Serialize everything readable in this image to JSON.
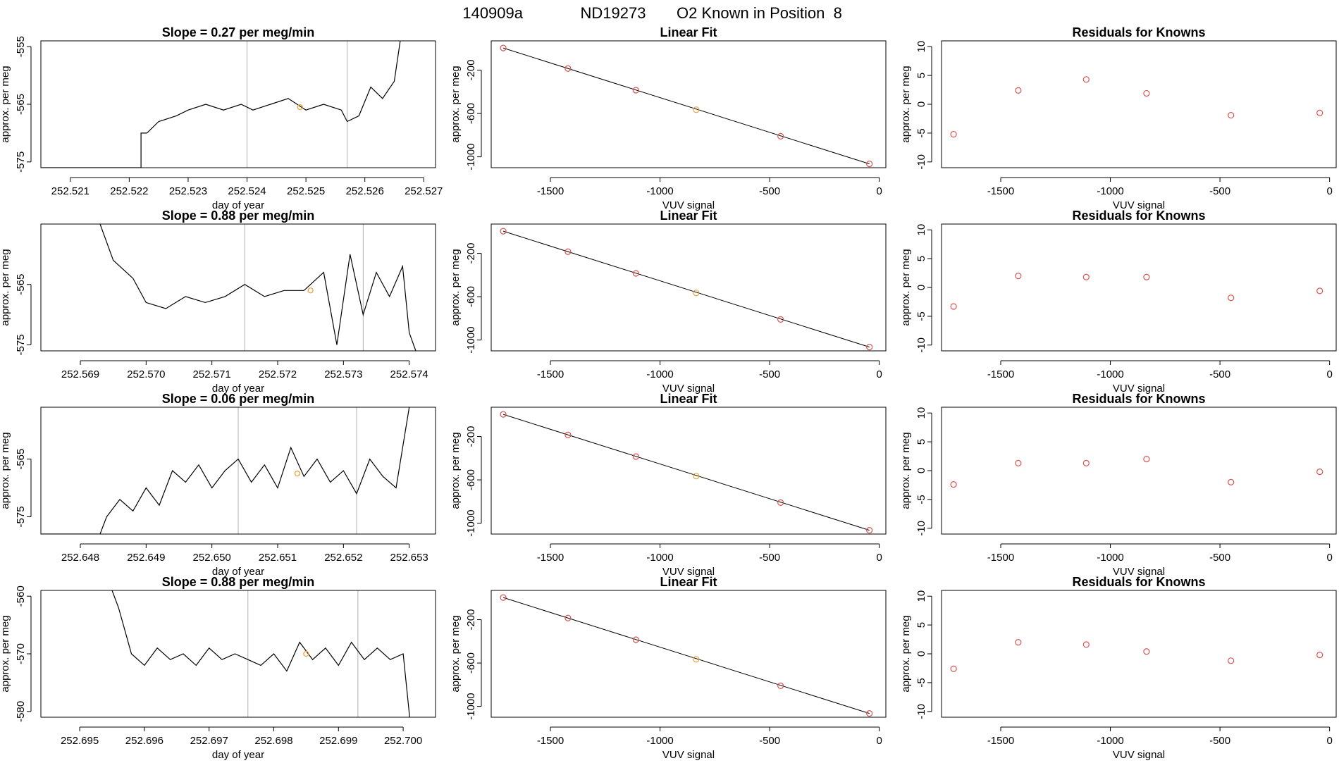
{
  "page_title": {
    "run_id": "140909a",
    "tank_id": "ND19273",
    "description": "O2 Known in Position  8"
  },
  "colors": {
    "line": "#000000",
    "frame": "#000000",
    "point": "#d9534f",
    "highlight_point": "#e8a33d",
    "vline": "#b0b0b0"
  },
  "chart_data": [
    {
      "type": "line",
      "panel": "trace",
      "row": 1,
      "title": "Slope =  0.27  per meg/min",
      "xlabel": "day of year",
      "ylabel": "approx. per meg",
      "xlim": [
        252.5205,
        252.5272
      ],
      "ylim": [
        -576,
        -554
      ],
      "x_ticks": [
        252.521,
        252.522,
        252.523,
        252.524,
        252.525,
        252.526,
        252.527
      ],
      "x_tick_labels": [
        "252.521",
        "252.522",
        "252.523",
        "252.524",
        "252.525",
        "252.526",
        "252.527"
      ],
      "y_ticks": [
        -575,
        -565,
        -555
      ],
      "y_tick_labels": [
        "-575",
        "-565",
        "-555"
      ],
      "vlines": [
        252.524,
        252.5257
      ],
      "highlight": {
        "x": 252.5249,
        "y": -565.5
      },
      "series": [
        {
          "x": [
            252.5205,
            252.5222,
            252.5222,
            252.5223,
            252.5225,
            252.5228,
            252.523,
            252.5233,
            252.5236,
            252.5239,
            252.5241,
            252.5244,
            252.5247,
            252.525,
            252.5253,
            252.5256,
            252.5257,
            252.5259,
            252.5261,
            252.5263,
            252.5265,
            252.5266
          ],
          "y": [
            -576,
            -576,
            -570,
            -570,
            -568,
            -567,
            -566,
            -565,
            -566,
            -565,
            -566,
            -565,
            -564,
            -566,
            -565,
            -566,
            -568,
            -567,
            -562,
            -564,
            -561,
            -554
          ]
        }
      ]
    },
    {
      "type": "line",
      "panel": "fit",
      "row": 1,
      "title": "Linear Fit",
      "xlabel": "VUV signal",
      "ylabel": "approx. per meg",
      "xlim": [
        -1770,
        30
      ],
      "ylim": [
        -1100,
        70
      ],
      "x_ticks": [
        -1500,
        -1000,
        -500,
        0
      ],
      "x_tick_labels": [
        "-1500",
        "-1000",
        "-500",
        "0"
      ],
      "y_ticks": [
        -1000,
        -600,
        -200
      ],
      "y_tick_labels": [
        "-1000",
        "-600",
        "-200"
      ],
      "fit_line": {
        "x": [
          -1715,
          -45
        ],
        "y": [
          4,
          -1065
        ]
      },
      "points": {
        "x": [
          -1715,
          -1420,
          -1110,
          -835,
          -450,
          -45
        ],
        "y": [
          4,
          -185,
          -385,
          -565,
          -810,
          -1065
        ]
      },
      "highlight_index": 3
    },
    {
      "type": "scatter",
      "panel": "residuals",
      "row": 1,
      "title": "Residuals for Knowns",
      "xlabel": "VUV signal",
      "ylabel": "approx. per meg",
      "xlim": [
        -1770,
        30
      ],
      "ylim": [
        -11,
        11
      ],
      "x_ticks": [
        -1500,
        -1000,
        -500,
        0
      ],
      "x_tick_labels": [
        "-1500",
        "-1000",
        "-500",
        "0"
      ],
      "y_ticks": [
        -10,
        -5,
        0,
        5,
        10
      ],
      "y_tick_labels": [
        "-10",
        "-5",
        "0",
        "5",
        "10"
      ],
      "points": {
        "x": [
          -1715,
          -1420,
          -1110,
          -835,
          -450,
          -45
        ],
        "y": [
          -5.2,
          2.4,
          4.3,
          1.9,
          -1.9,
          -1.5
        ]
      }
    },
    {
      "type": "line",
      "panel": "trace",
      "row": 2,
      "title": "Slope =  0.88  per meg/min",
      "xlabel": "day of year",
      "ylabel": "approx. per meg",
      "xlim": [
        252.5684,
        252.5744
      ],
      "ylim": [
        -576,
        -555
      ],
      "x_ticks": [
        252.569,
        252.57,
        252.571,
        252.572,
        252.573,
        252.574
      ],
      "x_tick_labels": [
        "252.569",
        "252.570",
        "252.571",
        "252.572",
        "252.573",
        "252.574"
      ],
      "y_ticks": [
        -575,
        -565
      ],
      "y_tick_labels": [
        "-575",
        "-565"
      ],
      "vlines": [
        252.5715,
        252.5733
      ],
      "highlight": {
        "x": 252.5725,
        "y": -566
      },
      "series": [
        {
          "x": [
            252.5693,
            252.5695,
            252.5698,
            252.57,
            252.5703,
            252.5706,
            252.5709,
            252.5712,
            252.5715,
            252.5718,
            252.5721,
            252.5724,
            252.5727,
            252.5729,
            252.5731,
            252.5733,
            252.5735,
            252.5737,
            252.5739,
            252.574,
            252.5741
          ],
          "y": [
            -555,
            -561,
            -564,
            -568,
            -569,
            -567,
            -568,
            -567,
            -565,
            -567,
            -566,
            -566,
            -563,
            -575,
            -560,
            -570,
            -563,
            -567,
            -562,
            -573,
            -576
          ]
        }
      ]
    },
    {
      "type": "line",
      "panel": "fit",
      "row": 2,
      "title": "Linear Fit",
      "xlabel": "VUV signal",
      "ylabel": "approx. per meg",
      "xlim": [
        -1770,
        30
      ],
      "ylim": [
        -1100,
        70
      ],
      "x_ticks": [
        -1500,
        -1000,
        -500,
        0
      ],
      "x_tick_labels": [
        "-1500",
        "-1000",
        "-500",
        "0"
      ],
      "y_ticks": [
        -1000,
        -600,
        -200
      ],
      "y_tick_labels": [
        "-1000",
        "-600",
        "-200"
      ],
      "fit_line": {
        "x": [
          -1715,
          -45
        ],
        "y": [
          4,
          -1065
        ]
      },
      "points": {
        "x": [
          -1715,
          -1420,
          -1110,
          -835,
          -450,
          -45
        ],
        "y": [
          4,
          -185,
          -385,
          -565,
          -810,
          -1065
        ]
      },
      "highlight_index": 3
    },
    {
      "type": "scatter",
      "panel": "residuals",
      "row": 2,
      "title": "Residuals for Knowns",
      "xlabel": "VUV signal",
      "ylabel": "approx. per meg",
      "xlim": [
        -1770,
        30
      ],
      "ylim": [
        -11,
        11
      ],
      "x_ticks": [
        -1500,
        -1000,
        -500,
        0
      ],
      "x_tick_labels": [
        "-1500",
        "-1000",
        "-500",
        "0"
      ],
      "y_ticks": [
        -10,
        -5,
        0,
        5,
        10
      ],
      "y_tick_labels": [
        "-10",
        "-5",
        "0",
        "5",
        "10"
      ],
      "points": {
        "x": [
          -1715,
          -1420,
          -1110,
          -835,
          -450,
          -45
        ],
        "y": [
          -3.3,
          2.0,
          1.8,
          1.8,
          -1.8,
          -0.6
        ]
      }
    },
    {
      "type": "line",
      "panel": "trace",
      "row": 3,
      "title": "Slope =  0.06  per meg/min",
      "xlabel": "day of year",
      "ylabel": "approx. per meg",
      "xlim": [
        252.6474,
        252.6534
      ],
      "ylim": [
        -578,
        -556
      ],
      "x_ticks": [
        252.648,
        252.649,
        252.65,
        252.651,
        252.652,
        252.653
      ],
      "x_tick_labels": [
        "252.648",
        "252.649",
        "252.650",
        "252.651",
        "252.652",
        "252.653"
      ],
      "y_ticks": [
        -575,
        -565
      ],
      "y_tick_labels": [
        "-575",
        "-565"
      ],
      "vlines": [
        252.6504,
        252.6522
      ],
      "highlight": {
        "x": 252.6513,
        "y": -567.5
      },
      "series": [
        {
          "x": [
            252.6474,
            252.6483,
            252.6484,
            252.6486,
            252.6488,
            252.649,
            252.6492,
            252.6494,
            252.6496,
            252.6498,
            252.65,
            252.6502,
            252.6504,
            252.6506,
            252.6508,
            252.651,
            252.6512,
            252.6514,
            252.6516,
            252.6518,
            252.652,
            252.6522,
            252.6524,
            252.6526,
            252.6528,
            252.653
          ],
          "y": [
            -578,
            -578,
            -575,
            -572,
            -574,
            -570,
            -573,
            -567,
            -569,
            -566,
            -570,
            -567,
            -565,
            -569,
            -566,
            -570,
            -563,
            -568,
            -565,
            -569,
            -567,
            -571,
            -565,
            -568,
            -570,
            -556
          ]
        }
      ]
    },
    {
      "type": "line",
      "panel": "fit",
      "row": 3,
      "title": "Linear Fit",
      "xlabel": "VUV signal",
      "ylabel": "approx. per meg",
      "xlim": [
        -1770,
        30
      ],
      "ylim": [
        -1100,
        70
      ],
      "x_ticks": [
        -1500,
        -1000,
        -500,
        0
      ],
      "x_tick_labels": [
        "-1500",
        "-1000",
        "-500",
        "0"
      ],
      "y_ticks": [
        -1000,
        -600,
        -200
      ],
      "y_tick_labels": [
        "-1000",
        "-600",
        "-200"
      ],
      "fit_line": {
        "x": [
          -1715,
          -45
        ],
        "y": [
          4,
          -1065
        ]
      },
      "points": {
        "x": [
          -1715,
          -1420,
          -1110,
          -835,
          -450,
          -45
        ],
        "y": [
          4,
          -185,
          -385,
          -565,
          -810,
          -1065
        ]
      },
      "highlight_index": 3
    },
    {
      "type": "scatter",
      "panel": "residuals",
      "row": 3,
      "title": "Residuals for Knowns",
      "xlabel": "VUV signal",
      "ylabel": "approx. per meg",
      "xlim": [
        -1770,
        30
      ],
      "ylim": [
        -11,
        11
      ],
      "x_ticks": [
        -1500,
        -1000,
        -500,
        0
      ],
      "x_tick_labels": [
        "-1500",
        "-1000",
        "-500",
        "0"
      ],
      "y_ticks": [
        -10,
        -5,
        0,
        5,
        10
      ],
      "y_tick_labels": [
        "-10",
        "-5",
        "0",
        "5",
        "10"
      ],
      "points": {
        "x": [
          -1715,
          -1420,
          -1110,
          -835,
          -450,
          -45
        ],
        "y": [
          -2.4,
          1.3,
          1.3,
          2.0,
          -2.0,
          -0.2
        ]
      }
    },
    {
      "type": "line",
      "panel": "trace",
      "row": 4,
      "title": "Slope =  0.88  per meg/min",
      "xlabel": "day of year",
      "ylabel": "approx. per meg",
      "xlim": [
        252.6944,
        252.7005
      ],
      "ylim": [
        -581,
        -559
      ],
      "x_ticks": [
        252.695,
        252.696,
        252.697,
        252.698,
        252.699,
        252.7
      ],
      "x_tick_labels": [
        "252.695",
        "252.696",
        "252.697",
        "252.698",
        "252.699",
        "252.700"
      ],
      "y_ticks": [
        -580,
        -570,
        -560
      ],
      "y_tick_labels": [
        "-580",
        "-570",
        "-560"
      ],
      "vlines": [
        252.6976,
        252.6993
      ],
      "highlight": {
        "x": 252.6985,
        "y": -570
      },
      "series": [
        {
          "x": [
            252.6955,
            252.6956,
            252.6958,
            252.696,
            252.6962,
            252.6964,
            252.6966,
            252.6968,
            252.697,
            252.6972,
            252.6974,
            252.6976,
            252.6978,
            252.698,
            252.6982,
            252.6984,
            252.6986,
            252.6988,
            252.699,
            252.6992,
            252.6994,
            252.6996,
            252.6998,
            252.7,
            252.7001
          ],
          "y": [
            -559,
            -562,
            -570,
            -572,
            -569,
            -571,
            -570,
            -572,
            -569,
            -571,
            -570,
            -571,
            -572,
            -570,
            -573,
            -568,
            -571,
            -569,
            -572,
            -568,
            -571,
            -569,
            -571,
            -570,
            -581
          ]
        }
      ]
    },
    {
      "type": "line",
      "panel": "fit",
      "row": 4,
      "title": "Linear Fit",
      "xlabel": "VUV signal",
      "ylabel": "approx. per meg",
      "xlim": [
        -1770,
        30
      ],
      "ylim": [
        -1100,
        70
      ],
      "x_ticks": [
        -1500,
        -1000,
        -500,
        0
      ],
      "x_tick_labels": [
        "-1500",
        "-1000",
        "-500",
        "0"
      ],
      "y_ticks": [
        -1000,
        -600,
        -200
      ],
      "y_tick_labels": [
        "-1000",
        "-600",
        "-200"
      ],
      "fit_line": {
        "x": [
          -1715,
          -45
        ],
        "y": [
          4,
          -1065
        ]
      },
      "points": {
        "x": [
          -1715,
          -1420,
          -1110,
          -835,
          -450,
          -45
        ],
        "y": [
          4,
          -185,
          -385,
          -565,
          -810,
          -1065
        ]
      },
      "highlight_index": 3
    },
    {
      "type": "scatter",
      "panel": "residuals",
      "row": 4,
      "title": "Residuals for Knowns",
      "xlabel": "VUV signal",
      "ylabel": "approx. per meg",
      "xlim": [
        -1770,
        30
      ],
      "ylim": [
        -11,
        11
      ],
      "x_ticks": [
        -1500,
        -1000,
        -500,
        0
      ],
      "x_tick_labels": [
        "-1500",
        "-1000",
        "-500",
        "0"
      ],
      "y_ticks": [
        -10,
        -5,
        0,
        5,
        10
      ],
      "y_tick_labels": [
        "-10",
        "-5",
        "0",
        "5",
        "10"
      ],
      "points": {
        "x": [
          -1715,
          -1420,
          -1110,
          -835,
          -450,
          -45
        ],
        "y": [
          -2.6,
          2.0,
          1.6,
          0.4,
          -1.2,
          -0.2
        ]
      }
    }
  ]
}
